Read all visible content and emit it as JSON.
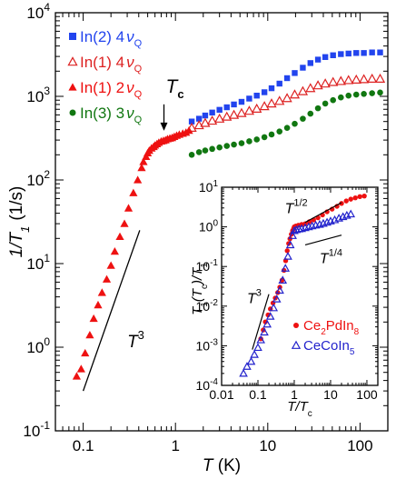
{
  "chart_data": [
    {
      "type": "scatter",
      "xscale": "log",
      "yscale": "log",
      "xlim": [
        0.05,
        200
      ],
      "ylim": [
        0.1,
        10000
      ],
      "xlabel": "T (K)",
      "ylabel": "1/T1 (1/s)",
      "x_ticks": [
        "0.1",
        "1",
        "10",
        "100"
      ],
      "y_ticks": [
        {
          "base": "10",
          "exp": "-1"
        },
        {
          "base": "10",
          "exp": "0"
        },
        {
          "base": "10",
          "exp": "1"
        },
        {
          "base": "10",
          "exp": "2"
        },
        {
          "base": "10",
          "exp": "3"
        },
        {
          "base": "10",
          "exp": "4"
        }
      ],
      "legend_position": "top-left",
      "series": [
        {
          "name": "In(2) 4νQ",
          "label": {
            "main": "In(2) 4",
            "greek": "ν",
            "sub": "Q"
          },
          "color": "#2244ee",
          "marker": "square",
          "x": [
            1.5,
            1.8,
            2.1,
            2.5,
            3.0,
            3.6,
            4.3,
            5.2,
            6.3,
            7.6,
            9.2,
            11,
            13.4,
            16.2,
            19.6,
            24,
            29,
            35,
            42,
            51,
            62,
            75,
            91,
            110,
            135,
            165
          ],
          "y": [
            500,
            540,
            590,
            640,
            690,
            740,
            800,
            860,
            940,
            1020,
            1120,
            1250,
            1420,
            1650,
            1900,
            2200,
            2500,
            2750,
            2950,
            3100,
            3200,
            3250,
            3300,
            3300,
            3350,
            3350
          ]
        },
        {
          "name": "In(1) 4νQ",
          "label": {
            "main": "In(1) 4",
            "greek": "ν",
            "sub": "Q"
          },
          "color": "#dd2222",
          "marker": "triangle-open",
          "x": [
            1.5,
            1.8,
            2.1,
            2.5,
            3.0,
            3.6,
            4.3,
            5.2,
            6.3,
            7.6,
            9.2,
            11,
            13.4,
            16.2,
            19.6,
            24,
            29,
            35,
            42,
            51,
            62,
            75,
            91,
            110,
            135,
            165
          ],
          "y": [
            420,
            450,
            480,
            510,
            540,
            570,
            600,
            630,
            670,
            710,
            760,
            820,
            880,
            950,
            1050,
            1150,
            1250,
            1350,
            1420,
            1480,
            1520,
            1560,
            1580,
            1600,
            1620,
            1620
          ]
        },
        {
          "name": "In(1) 2νQ",
          "label": {
            "main": "In(1) 2",
            "greek": "ν",
            "sub": "Q"
          },
          "color": "#ee1111",
          "marker": "triangle",
          "x": [
            0.085,
            0.095,
            0.105,
            0.118,
            0.13,
            0.145,
            0.16,
            0.18,
            0.2,
            0.22,
            0.25,
            0.28,
            0.31,
            0.35,
            0.39,
            0.43,
            0.45,
            0.48,
            0.5,
            0.52,
            0.55,
            0.58,
            0.6,
            0.63,
            0.66,
            0.7,
            0.74,
            0.78,
            0.82,
            0.87,
            0.92,
            0.97,
            1.03,
            1.1,
            1.2,
            1.3,
            1.4
          ],
          "y": [
            0.45,
            0.55,
            0.85,
            1.4,
            2.2,
            3.2,
            4.5,
            6.5,
            9.5,
            14,
            21,
            30,
            46,
            70,
            100,
            140,
            165,
            190,
            210,
            225,
            240,
            250,
            260,
            270,
            280,
            290,
            295,
            300,
            310,
            315,
            320,
            330,
            340,
            350,
            360,
            370,
            390
          ]
        },
        {
          "name": "In(3) 3νQ",
          "label": {
            "main": "In(3) 3",
            "greek": "ν",
            "sub": "Q"
          },
          "color": "#117711",
          "marker": "circle",
          "x": [
            1.5,
            1.8,
            2.1,
            2.5,
            3.0,
            3.6,
            4.3,
            5.2,
            6.3,
            7.6,
            9.2,
            11,
            13.4,
            16.2,
            19.6,
            24,
            29,
            35,
            42,
            51,
            62,
            75,
            91,
            110,
            135,
            165
          ],
          "y": [
            200,
            215,
            225,
            235,
            245,
            255,
            265,
            275,
            290,
            305,
            325,
            350,
            380,
            420,
            470,
            540,
            620,
            720,
            820,
            900,
            970,
            1020,
            1050,
            1070,
            1090,
            1110
          ]
        }
      ],
      "annotations": [
        {
          "text": "T",
          "sub": "c",
          "x": 0.75,
          "y": 360,
          "kind": "arrow"
        },
        {
          "text": "T",
          "sup": "3",
          "x": 0.3,
          "y": 1.0,
          "kind": "guide",
          "line": {
            "x": [
              0.1,
              0.41
            ],
            "y": [
              0.3,
              25
            ]
          }
        }
      ]
    },
    {
      "type": "scatter",
      "xscale": "log",
      "yscale": "log",
      "xlim": [
        0.01,
        200
      ],
      "ylim": [
        0.0001,
        10
      ],
      "xlabel": "T/Tc",
      "ylabel": "T1(Tc)/T1",
      "x_ticks": [
        "0.01",
        "0.1",
        "1",
        "10",
        "100"
      ],
      "y_ticks": [
        {
          "base": "10",
          "exp": "-4"
        },
        {
          "base": "10",
          "exp": "-3"
        },
        {
          "base": "10",
          "exp": "-2"
        },
        {
          "base": "10",
          "exp": "-1"
        },
        {
          "base": "10",
          "exp": "0"
        },
        {
          "base": "10",
          "exp": "1"
        }
      ],
      "legend_position": "bottom-right",
      "series": [
        {
          "name": "Ce2PdIn8",
          "label": {
            "p1": "Ce",
            "s1": "2",
            "p2": "PdIn",
            "s2": "8"
          },
          "color": "#ee1111",
          "marker": "circle",
          "x": [
            0.12,
            0.14,
            0.16,
            0.19,
            0.22,
            0.26,
            0.3,
            0.35,
            0.4,
            0.46,
            0.52,
            0.58,
            0.64,
            0.7,
            0.76,
            0.83,
            0.9,
            0.96,
            1.0,
            1.1,
            1.3,
            1.6,
            2.0,
            2.6,
            3.4,
            4.5,
            6,
            8,
            11,
            15,
            20,
            27,
            36,
            48,
            64,
            85
          ],
          "y": [
            0.0015,
            0.0025,
            0.004,
            0.006,
            0.0085,
            0.012,
            0.016,
            0.022,
            0.03,
            0.045,
            0.08,
            0.14,
            0.25,
            0.38,
            0.5,
            0.65,
            0.8,
            0.9,
            1.0,
            1.05,
            1.1,
            1.15,
            1.2,
            1.35,
            1.5,
            1.7,
            2.0,
            2.4,
            2.8,
            3.3,
            3.9,
            4.5,
            5.0,
            5.4,
            5.8,
            6.0
          ]
        },
        {
          "name": "CeCoIn5",
          "label": {
            "p1": "CeCoIn",
            "s1": "5",
            "p2": "",
            "s2": ""
          },
          "color": "#2222cc",
          "marker": "triangle-open",
          "x": [
            0.04,
            0.05,
            0.065,
            0.08,
            0.1,
            0.12,
            0.15,
            0.18,
            0.22,
            0.27,
            0.33,
            0.4,
            0.48,
            0.57,
            0.67,
            0.78,
            0.9,
            1.0,
            1.15,
            1.35,
            1.6,
            2.0,
            2.5,
            3.1,
            3.9,
            5.0,
            6.3,
            8,
            10,
            13,
            17,
            22,
            28,
            36
          ],
          "y": [
            0.0002,
            0.0003,
            0.0004,
            0.0006,
            0.0009,
            0.0014,
            0.0022,
            0.0035,
            0.0055,
            0.009,
            0.015,
            0.025,
            0.045,
            0.09,
            0.18,
            0.35,
            0.6,
            0.8,
            0.85,
            0.88,
            0.9,
            0.95,
            1.0,
            1.05,
            1.1,
            1.15,
            1.22,
            1.3,
            1.4,
            1.5,
            1.65,
            1.8,
            1.95,
            2.1
          ]
        }
      ],
      "annotations": [
        {
          "text": "T",
          "sup": "1/2",
          "x": 0.55,
          "y": 2.2,
          "kind": "guide",
          "line": {
            "x": [
              2,
              20
            ],
            "y": [
              1.3,
              4.1
            ]
          }
        },
        {
          "text": "T",
          "sup": "1/4",
          "x": 5,
          "y": 0.12,
          "kind": "guide",
          "line": {
            "x": [
              2,
              20
            ],
            "y": [
              0.35,
              0.62
            ]
          }
        },
        {
          "text": "T",
          "sup": "3",
          "x": 0.05,
          "y": 0.012,
          "kind": "guide",
          "line": {
            "x": [
              0.07,
              0.2
            ],
            "y": [
              0.0008,
              0.02
            ]
          }
        }
      ]
    }
  ]
}
